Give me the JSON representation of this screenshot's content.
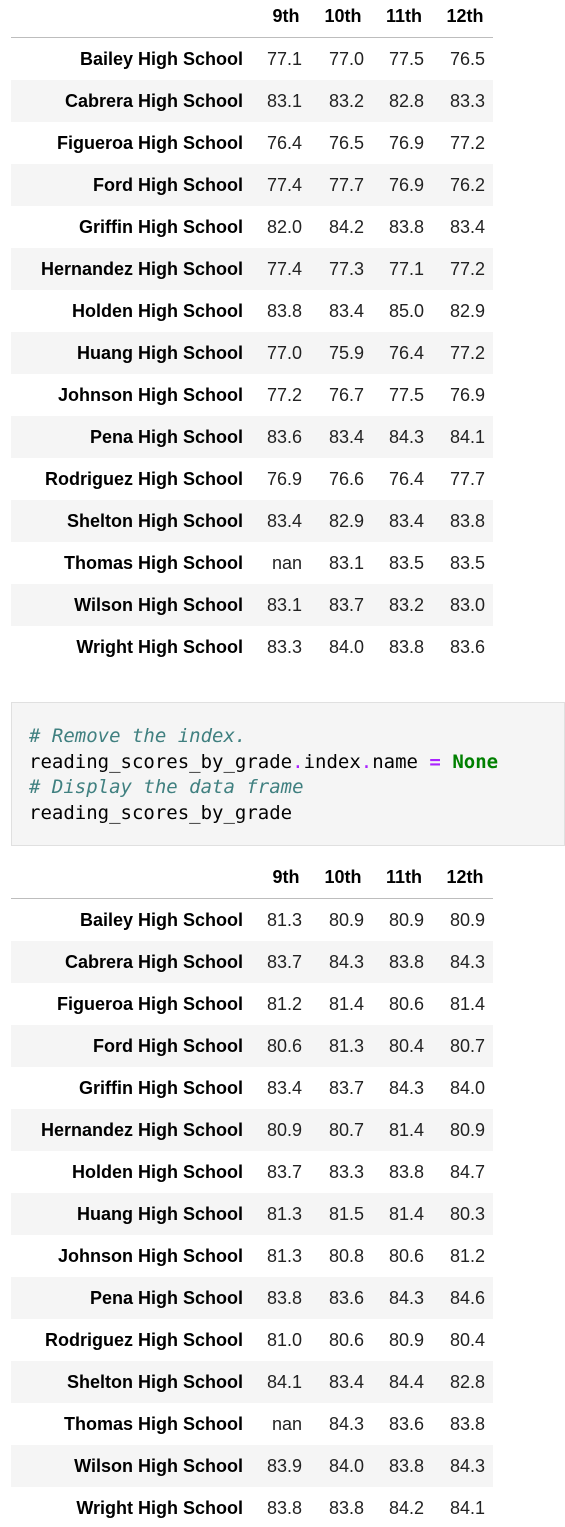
{
  "table_1": {
    "columns": [
      "9th",
      "10th",
      "11th",
      "12th"
    ],
    "rows": [
      {
        "name": "Bailey High School",
        "values": [
          "77.1",
          "77.0",
          "77.5",
          "76.5"
        ]
      },
      {
        "name": "Cabrera High School",
        "values": [
          "83.1",
          "83.2",
          "82.8",
          "83.3"
        ]
      },
      {
        "name": "Figueroa High School",
        "values": [
          "76.4",
          "76.5",
          "76.9",
          "77.2"
        ]
      },
      {
        "name": "Ford High School",
        "values": [
          "77.4",
          "77.7",
          "76.9",
          "76.2"
        ]
      },
      {
        "name": "Griffin High School",
        "values": [
          "82.0",
          "84.2",
          "83.8",
          "83.4"
        ]
      },
      {
        "name": "Hernandez High School",
        "values": [
          "77.4",
          "77.3",
          "77.1",
          "77.2"
        ]
      },
      {
        "name": "Holden High School",
        "values": [
          "83.8",
          "83.4",
          "85.0",
          "82.9"
        ]
      },
      {
        "name": "Huang High School",
        "values": [
          "77.0",
          "75.9",
          "76.4",
          "77.2"
        ]
      },
      {
        "name": "Johnson High School",
        "values": [
          "77.2",
          "76.7",
          "77.5",
          "76.9"
        ]
      },
      {
        "name": "Pena High School",
        "values": [
          "83.6",
          "83.4",
          "84.3",
          "84.1"
        ]
      },
      {
        "name": "Rodriguez High School",
        "values": [
          "76.9",
          "76.6",
          "76.4",
          "77.7"
        ]
      },
      {
        "name": "Shelton High School",
        "values": [
          "83.4",
          "82.9",
          "83.4",
          "83.8"
        ]
      },
      {
        "name": "Thomas High School",
        "values": [
          "nan",
          "83.1",
          "83.5",
          "83.5"
        ]
      },
      {
        "name": "Wilson High School",
        "values": [
          "83.1",
          "83.7",
          "83.2",
          "83.0"
        ]
      },
      {
        "name": "Wright High School",
        "values": [
          "83.3",
          "84.0",
          "83.8",
          "83.6"
        ]
      }
    ]
  },
  "code": {
    "lines": [
      [
        {
          "text": "# Remove the index.",
          "color": "#408080",
          "italic": true
        }
      ],
      [
        {
          "text": "reading_scores_by_grade",
          "color": "#000000"
        },
        {
          "text": ".",
          "color": "#aa22ff"
        },
        {
          "text": "index",
          "color": "#000000"
        },
        {
          "text": ".",
          "color": "#aa22ff"
        },
        {
          "text": "name ",
          "color": "#000000"
        },
        {
          "text": "=",
          "color": "#aa22ff",
          "bold": true
        },
        {
          "text": " ",
          "color": "#000000"
        },
        {
          "text": "None",
          "color": "#008000",
          "bold": true
        }
      ],
      [
        {
          "text": "# Display the data frame",
          "color": "#408080",
          "italic": true
        }
      ],
      [
        {
          "text": "reading_scores_by_grade",
          "color": "#000000"
        }
      ]
    ]
  },
  "table_2": {
    "columns": [
      "9th",
      "10th",
      "11th",
      "12th"
    ],
    "rows": [
      {
        "name": "Bailey High School",
        "values": [
          "81.3",
          "80.9",
          "80.9",
          "80.9"
        ]
      },
      {
        "name": "Cabrera High School",
        "values": [
          "83.7",
          "84.3",
          "83.8",
          "84.3"
        ]
      },
      {
        "name": "Figueroa High School",
        "values": [
          "81.2",
          "81.4",
          "80.6",
          "81.4"
        ]
      },
      {
        "name": "Ford High School",
        "values": [
          "80.6",
          "81.3",
          "80.4",
          "80.7"
        ]
      },
      {
        "name": "Griffin High School",
        "values": [
          "83.4",
          "83.7",
          "84.3",
          "84.0"
        ]
      },
      {
        "name": "Hernandez High School",
        "values": [
          "80.9",
          "80.7",
          "81.4",
          "80.9"
        ]
      },
      {
        "name": "Holden High School",
        "values": [
          "83.7",
          "83.3",
          "83.8",
          "84.7"
        ]
      },
      {
        "name": "Huang High School",
        "values": [
          "81.3",
          "81.5",
          "81.4",
          "80.3"
        ]
      },
      {
        "name": "Johnson High School",
        "values": [
          "81.3",
          "80.8",
          "80.6",
          "81.2"
        ]
      },
      {
        "name": "Pena High School",
        "values": [
          "83.8",
          "83.6",
          "84.3",
          "84.6"
        ]
      },
      {
        "name": "Rodriguez High School",
        "values": [
          "81.0",
          "80.6",
          "80.9",
          "80.4"
        ]
      },
      {
        "name": "Shelton High School",
        "values": [
          "84.1",
          "83.4",
          "84.4",
          "82.8"
        ]
      },
      {
        "name": "Thomas High School",
        "values": [
          "nan",
          "84.3",
          "83.6",
          "83.8"
        ]
      },
      {
        "name": "Wilson High School",
        "values": [
          "83.9",
          "84.0",
          "83.8",
          "84.3"
        ]
      },
      {
        "name": "Wright High School",
        "values": [
          "83.8",
          "83.8",
          "84.2",
          "84.1"
        ]
      }
    ]
  }
}
